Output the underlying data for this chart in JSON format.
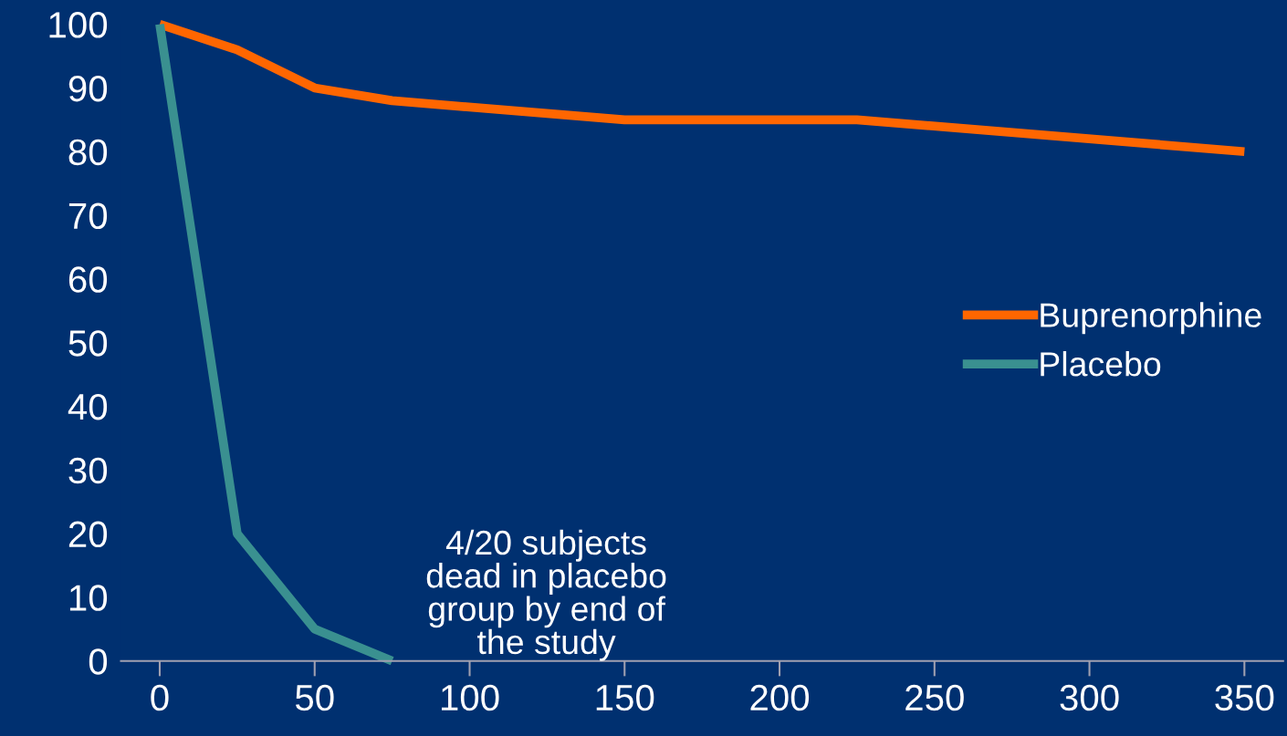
{
  "chart_data": {
    "type": "line",
    "series": [
      {
        "name": "Buprenorphine",
        "color": "#ff6600",
        "x": [
          0,
          25,
          50,
          75,
          150,
          225,
          350
        ],
        "values": [
          100,
          96,
          90,
          88,
          85,
          85,
          80
        ]
      },
      {
        "name": "Placebo",
        "color": "#3a9090",
        "x": [
          0,
          25,
          50,
          75
        ],
        "values": [
          100,
          20,
          5,
          0
        ]
      }
    ],
    "xlim": [
      -12.5,
      362.5
    ],
    "xticks": [
      0,
      50,
      100,
      150,
      200,
      250,
      300,
      350
    ],
    "ylim": [
      0,
      100
    ],
    "yticks": [
      0,
      10,
      20,
      30,
      40,
      50,
      60,
      70,
      80,
      90,
      100
    ],
    "annotations": [
      "4/20 subjects\ndead in placebo\ngroup by end of\nthe study"
    ],
    "legend": "right",
    "grid": false,
    "marker": "none",
    "line_style": "solid"
  }
}
